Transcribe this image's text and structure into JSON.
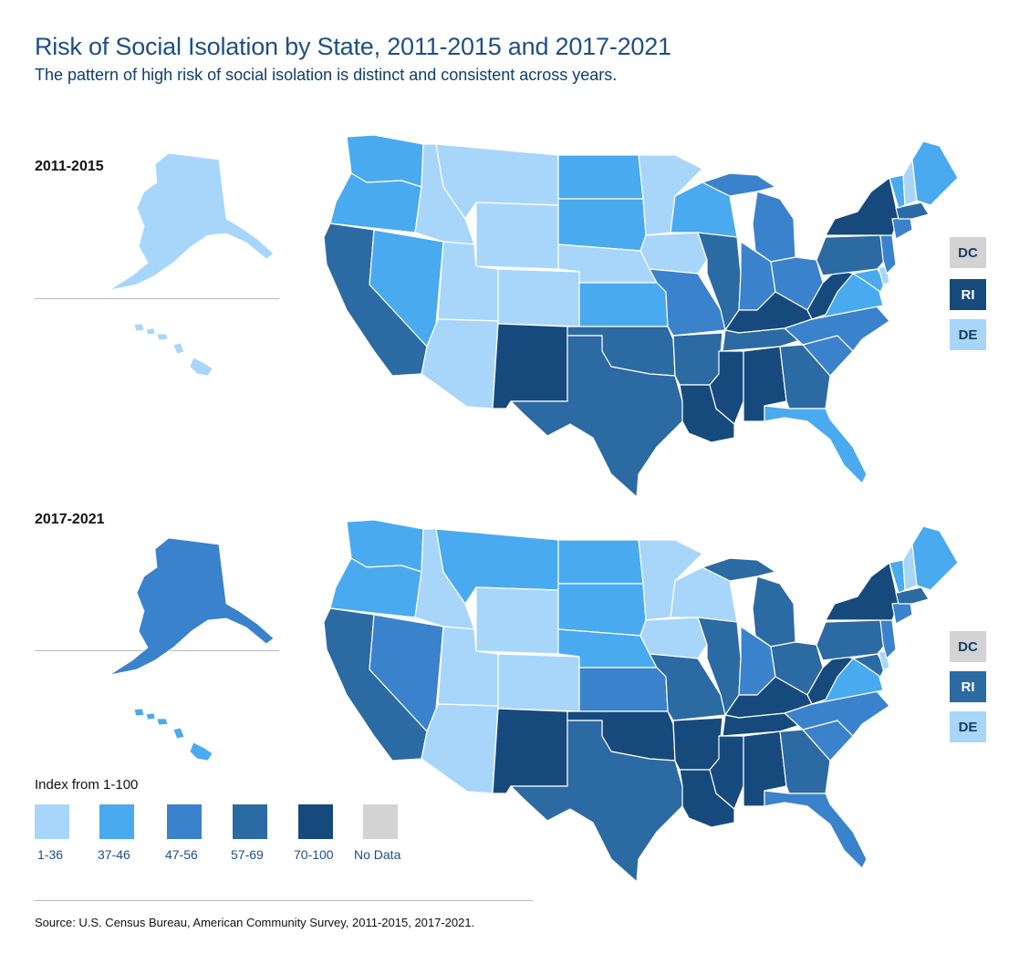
{
  "header": {
    "title": "Risk of Social Isolation by State, 2011-2015 and 2017-2021",
    "subtitle": "The pattern of high risk of social isolation is distinct and consistent across years."
  },
  "colors": {
    "c1": "#a8d6fb",
    "c2": "#4aaaf0",
    "c3": "#3b82cc",
    "c4": "#2c6aa3",
    "c5": "#164a7d",
    "nodata": "#d3d3d3",
    "title": "#1d4f86"
  },
  "maps": [
    {
      "period": "2011-2015",
      "categories": {
        "WA": "37-46",
        "OR": "37-46",
        "CA": "57-69",
        "NV": "37-46",
        "ID": "1-36",
        "MT": "1-36",
        "WY": "1-36",
        "UT": "1-36",
        "AZ": "1-36",
        "CO": "1-36",
        "NM": "70-100",
        "ND": "37-46",
        "SD": "37-46",
        "NE": "1-36",
        "KS": "37-46",
        "OK": "57-69",
        "TX": "57-69",
        "MN": "1-36",
        "IA": "1-36",
        "MO": "47-56",
        "AR": "57-69",
        "LA": "70-100",
        "WI": "37-46",
        "IL": "57-69",
        "MI": "47-56",
        "IN": "47-56",
        "OH": "47-56",
        "KY": "70-100",
        "TN": "57-69",
        "MS": "70-100",
        "AL": "70-100",
        "GA": "57-69",
        "FL": "37-46",
        "SC": "47-56",
        "NC": "47-56",
        "VA": "37-46",
        "WV": "70-100",
        "PA": "57-69",
        "NY": "70-100",
        "ME": "37-46",
        "VT": "37-46",
        "NH": "1-36",
        "MA": "57-69",
        "CT": "47-56",
        "NJ": "47-56",
        "MD": "37-46",
        "DE": "1-36",
        "AK": "1-36",
        "HI": "1-36"
      },
      "boxes": [
        {
          "label": "DC",
          "category": "No Data"
        },
        {
          "label": "RI",
          "category": "70-100"
        },
        {
          "label": "DE",
          "category": "1-36"
        }
      ]
    },
    {
      "period": "2017-2021",
      "categories": {
        "WA": "37-46",
        "OR": "37-46",
        "CA": "57-69",
        "NV": "47-56",
        "ID": "1-36",
        "MT": "37-46",
        "WY": "1-36",
        "UT": "1-36",
        "AZ": "1-36",
        "CO": "1-36",
        "NM": "70-100",
        "ND": "37-46",
        "SD": "37-46",
        "NE": "37-46",
        "KS": "47-56",
        "OK": "70-100",
        "TX": "57-69",
        "MN": "1-36",
        "IA": "1-36",
        "MO": "57-69",
        "AR": "70-100",
        "LA": "70-100",
        "WI": "1-36",
        "IL": "57-69",
        "MI": "57-69",
        "IN": "47-56",
        "OH": "57-69",
        "KY": "70-100",
        "TN": "70-100",
        "MS": "70-100",
        "AL": "70-100",
        "GA": "57-69",
        "FL": "47-56",
        "SC": "47-56",
        "NC": "47-56",
        "VA": "37-46",
        "WV": "70-100",
        "PA": "57-69",
        "NY": "70-100",
        "ME": "37-46",
        "VT": "37-46",
        "NH": "1-36",
        "MA": "57-69",
        "CT": "47-56",
        "NJ": "47-56",
        "MD": "57-69",
        "DE": "1-36",
        "AK": "47-56",
        "HI": "37-46"
      },
      "boxes": [
        {
          "label": "DC",
          "category": "No Data"
        },
        {
          "label": "RI",
          "category": "57-69"
        },
        {
          "label": "DE",
          "category": "1-36"
        }
      ]
    }
  ],
  "legend": {
    "title": "Index from 1-100",
    "items": [
      {
        "label": "1-36",
        "color": "#a8d6fb"
      },
      {
        "label": "37-46",
        "color": "#4aaaf0"
      },
      {
        "label": "47-56",
        "color": "#3b82cc"
      },
      {
        "label": "57-69",
        "color": "#2c6aa3"
      },
      {
        "label": "70-100",
        "color": "#164a7d"
      },
      {
        "label": "No Data",
        "color": "#d3d3d3"
      }
    ]
  },
  "source": "Source: U.S. Census Bureau, American Community Survey, 2011-2015, 2017-2021."
}
